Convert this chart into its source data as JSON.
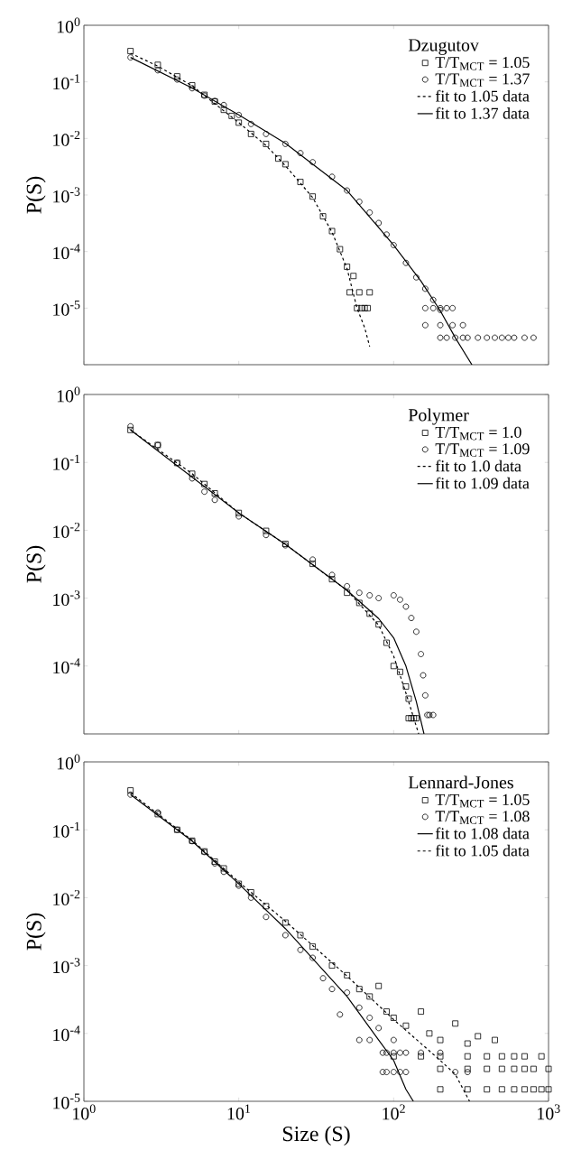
{
  "chart_data": [
    {
      "type": "scatter",
      "legend_title": "Dzugutov",
      "ylabel": "P(S)",
      "log": "xy",
      "legend": "top right",
      "tick_labels": "y",
      "xlim": [
        1,
        1000
      ],
      "ylim": [
        1e-06,
        1
      ],
      "xticks": [
        {
          "value": 1,
          "label": null
        },
        {
          "value": 10,
          "label": null
        },
        {
          "value": 100,
          "label": null
        },
        {
          "value": 1000,
          "label": null
        }
      ],
      "yticks": [
        {
          "value": 1e-06,
          "label": null
        },
        {
          "value": 1e-05,
          "label": "10$^{-5}$"
        },
        {
          "value": 0.0001,
          "label": "10$^{-4}$"
        },
        {
          "value": 0.001,
          "label": "10$^{-3}$"
        },
        {
          "value": 0.01,
          "label": "10$^{-2}$"
        },
        {
          "value": 0.1,
          "label": "10$^{-1}$"
        },
        {
          "value": 1,
          "label": "10$^{0}$"
        }
      ],
      "series": [
        {
          "name": "T/T$_{MCT}$ = 1.05",
          "marker": "square",
          "color": "#000000",
          "x": [
            2,
            3,
            4,
            5,
            6,
            7,
            8,
            9,
            10,
            12,
            15,
            18,
            20,
            25,
            30,
            35,
            40,
            45,
            50,
            52,
            55,
            58,
            60,
            62,
            65,
            68,
            70
          ],
          "values": [
            0.35,
            0.2,
            0.125,
            0.087,
            0.059,
            0.045,
            0.032,
            0.025,
            0.019,
            0.012,
            0.008,
            0.0044,
            0.0035,
            0.0017,
            0.00094,
            0.00042,
            0.00023,
            0.00011,
            5.4e-05,
            1.9e-05,
            3.7e-05,
            1e-05,
            1.9e-05,
            1e-05,
            1e-05,
            1e-05,
            1.9e-05
          ]
        },
        {
          "name": "T/T$_{MCT}$ = 1.37",
          "marker": "circle",
          "color": "#000000",
          "x": [
            2,
            3,
            4,
            5,
            6,
            7,
            8,
            10,
            12,
            15,
            20,
            25,
            30,
            40,
            50,
            60,
            70,
            80,
            90,
            100,
            120,
            140,
            160,
            180,
            200,
            160,
            180,
            200,
            220,
            240,
            160,
            200,
            240,
            280,
            200,
            220,
            250,
            280,
            300,
            350,
            400,
            450,
            500,
            550,
            600,
            700,
            800
          ],
          "values": [
            0.27,
            0.16,
            0.11,
            0.077,
            0.057,
            0.046,
            0.039,
            0.026,
            0.018,
            0.012,
            0.008,
            0.0055,
            0.0038,
            0.0021,
            0.0012,
            0.00076,
            0.00049,
            0.00032,
            0.0002,
            0.00013,
            6.3e-05,
            3.5e-05,
            2.2e-05,
            1.4e-05,
            9.3e-06,
            1e-05,
            1e-05,
            1e-05,
            1e-05,
            1e-05,
            5e-06,
            5e-06,
            5e-06,
            5e-06,
            3e-06,
            3e-06,
            3e-06,
            3e-06,
            3e-06,
            3e-06,
            3e-06,
            3e-06,
            3e-06,
            3e-06,
            3e-06,
            3e-06,
            3e-06
          ]
        },
        {
          "name": "fit to 1.05 data",
          "type": "line",
          "line_style": "dashed",
          "marker": "none",
          "color": "#000000",
          "x": [
            2,
            3,
            5,
            10,
            15,
            20,
            30,
            40,
            50,
            58,
            65,
            70
          ],
          "values": [
            0.32,
            0.19,
            0.085,
            0.019,
            0.0075,
            0.0033,
            0.0009,
            0.00022,
            5e-05,
            1e-05,
            4.5e-06,
            2.1e-06
          ]
        },
        {
          "name": "fit to 1.37 data",
          "type": "line",
          "line_style": "solid",
          "marker": "none",
          "color": "#000000",
          "x": [
            2,
            5,
            10,
            20,
            50,
            100,
            150,
            200,
            250,
            320
          ],
          "values": [
            0.27,
            0.078,
            0.026,
            0.0082,
            0.0012,
            0.00013,
            3e-05,
            9e-06,
            3e-06,
            1e-06
          ]
        }
      ]
    },
    {
      "type": "scatter",
      "legend_title": "Polymer",
      "ylabel": "P(S)",
      "log": "xy",
      "legend": "top right",
      "tick_labels": "y",
      "xlim": [
        1,
        1000
      ],
      "ylim": [
        1e-05,
        1
      ],
      "xticks": [
        {
          "value": 1,
          "label": null
        },
        {
          "value": 10,
          "label": null
        },
        {
          "value": 100,
          "label": null
        },
        {
          "value": 1000,
          "label": null
        }
      ],
      "yticks": [
        {
          "value": 1e-05,
          "label": null
        },
        {
          "value": 0.0001,
          "label": "10$^{-4}$"
        },
        {
          "value": 0.001,
          "label": "10$^{-3}$"
        },
        {
          "value": 0.01,
          "label": "10$^{-2}$"
        },
        {
          "value": 0.1,
          "label": "10$^{-1}$"
        },
        {
          "value": 1,
          "label": "10$^{0}$"
        }
      ],
      "series": [
        {
          "name": "T/T$_{MCT}$ = 1.0",
          "marker": "square",
          "color": "#000000",
          "x": [
            2,
            3,
            4,
            5,
            6,
            7,
            10,
            15,
            20,
            30,
            40,
            50,
            60,
            70,
            80,
            90,
            100,
            110,
            120,
            125,
            125,
            130,
            135,
            140
          ],
          "values": [
            0.3,
            0.18,
            0.098,
            0.068,
            0.048,
            0.035,
            0.018,
            0.0098,
            0.0063,
            0.0032,
            0.0019,
            0.0012,
            0.00085,
            0.00059,
            0.00041,
            0.00022,
            0.0001,
            8.2e-05,
            5e-05,
            3.3e-05,
            1.7e-05,
            1.7e-05,
            1.7e-05,
            1.7e-05
          ]
        },
        {
          "name": "T/T$_{MCT}$ = 1.09",
          "marker": "circle",
          "color": "#000000",
          "x": [
            2,
            3,
            4,
            5,
            6,
            7,
            10,
            15,
            20,
            30,
            40,
            50,
            60,
            70,
            80,
            100,
            110,
            120,
            130,
            140,
            150,
            155,
            160,
            165,
            170,
            180
          ],
          "values": [
            0.34,
            0.18,
            0.098,
            0.058,
            0.037,
            0.028,
            0.016,
            0.0085,
            0.006,
            0.0037,
            0.0022,
            0.0015,
            0.0012,
            0.0011,
            0.001,
            0.0011,
            0.00095,
            0.00075,
            0.00051,
            0.00032,
            0.00015,
            7.3e-05,
            3.7e-05,
            1.9e-05,
            1.9e-05,
            1.9e-05
          ]
        },
        {
          "name": "fit to 1.0 data",
          "type": "line",
          "line_style": "dashed",
          "marker": "none",
          "color": "#000000",
          "x": [
            2,
            5,
            10,
            20,
            50,
            80,
            100,
            120,
            145
          ],
          "values": [
            0.3,
            0.068,
            0.018,
            0.0062,
            0.0013,
            0.0004,
            0.00014,
            4e-05,
            1e-05
          ]
        },
        {
          "name": "fit to 1.09 data",
          "type": "line",
          "line_style": "solid",
          "marker": "none",
          "color": "#000000",
          "x": [
            2,
            10,
            20,
            50,
            80,
            100,
            120,
            140,
            157
          ],
          "values": [
            0.3,
            0.018,
            0.0062,
            0.0013,
            0.0005,
            0.00026,
            0.0001,
            3e-05,
            1e-05
          ]
        }
      ]
    },
    {
      "type": "scatter",
      "legend_title": "Lennard-Jones",
      "ylabel": "P(S)",
      "xlabel": "Size (S)",
      "log": "xy",
      "legend": "top right",
      "xlim": [
        1,
        1000
      ],
      "ylim": [
        1e-05,
        1
      ],
      "xticks": [
        {
          "value": 1,
          "label": "10$^{0}$"
        },
        {
          "value": 10,
          "label": "10$^{1}$"
        },
        {
          "value": 100,
          "label": "10$^{2}$"
        },
        {
          "value": 1000,
          "label": "10$^{3}$"
        }
      ],
      "yticks": [
        {
          "value": 1e-05,
          "label": "10$^{-5}$"
        },
        {
          "value": 0.0001,
          "label": "10$^{-4}$"
        },
        {
          "value": 0.001,
          "label": "10$^{-3}$"
        },
        {
          "value": 0.01,
          "label": "10$^{-2}$"
        },
        {
          "value": 0.1,
          "label": "10$^{-1}$"
        },
        {
          "value": 1,
          "label": "10$^{0}$"
        }
      ],
      "series": [
        {
          "name": "T/T$_{MCT}$ = 1.05",
          "marker": "square",
          "color": "#000000",
          "x": [
            2,
            3,
            4,
            5,
            6,
            7,
            8,
            10,
            12,
            15,
            20,
            25,
            30,
            40,
            50,
            60,
            70,
            80,
            90,
            100,
            120,
            150,
            170,
            200,
            250,
            300,
            350,
            450,
            100,
            150,
            200,
            300,
            400,
            500,
            600,
            700,
            900,
            200,
            300,
            400,
            500,
            600,
            700,
            800,
            1000,
            200,
            300,
            400,
            500,
            600,
            700,
            800,
            900,
            1000
          ],
          "values": [
            0.38,
            0.17,
            0.1,
            0.069,
            0.048,
            0.034,
            0.027,
            0.016,
            0.012,
            0.0075,
            0.0043,
            0.0028,
            0.0019,
            0.001,
            0.00072,
            0.00045,
            0.00035,
            0.0005,
            0.00021,
            0.00017,
            0.00013,
            0.00021,
            0.0001,
            8e-05,
            0.00014,
            7.1e-05,
            9.1e-05,
            8e-05,
            4.6e-05,
            4.6e-05,
            4.6e-05,
            4.6e-05,
            4.6e-05,
            4.6e-05,
            4.6e-05,
            4.6e-05,
            4.6e-05,
            3e-05,
            3e-05,
            3e-05,
            3e-05,
            3e-05,
            3e-05,
            3e-05,
            3e-05,
            1.5e-05,
            1.5e-05,
            1.5e-05,
            1.5e-05,
            1.5e-05,
            1.5e-05,
            1.5e-05,
            1.5e-05,
            1.5e-05
          ]
        },
        {
          "name": "T/T$_{MCT}$ = 1.08",
          "marker": "circle",
          "color": "#000000",
          "x": [
            2,
            3,
            4,
            5,
            6,
            7,
            8,
            10,
            12,
            15,
            20,
            25,
            30,
            35,
            40,
            45,
            50,
            60,
            70,
            80,
            100,
            60,
            70,
            85,
            90,
            100,
            110,
            120,
            150,
            200,
            85,
            90,
            100,
            110,
            120,
            250,
            300
          ],
          "values": [
            0.33,
            0.18,
            0.1,
            0.068,
            0.047,
            0.032,
            0.024,
            0.015,
            0.01,
            0.0052,
            0.0028,
            0.0017,
            0.0013,
            0.00065,
            0.00045,
            0.00019,
            0.0004,
            0.00024,
            0.00017,
            0.00012,
            8e-05,
            8e-05,
            8e-05,
            5.2e-05,
            5.2e-05,
            5.2e-05,
            5.2e-05,
            5.2e-05,
            5.2e-05,
            5.2e-05,
            2.7e-05,
            2.7e-05,
            2.7e-05,
            2.7e-05,
            2.7e-05,
            2.7e-05,
            2.7e-05
          ]
        },
        {
          "name": "fit to 1.08 data",
          "type": "line",
          "line_style": "solid",
          "marker": "none",
          "color": "#000000",
          "x": [
            2,
            5,
            10,
            20,
            50,
            80,
            100,
            120,
            134
          ],
          "values": [
            0.33,
            0.068,
            0.016,
            0.0035,
            0.00035,
            8e-05,
            4e-05,
            1.5e-05,
            1e-05
          ]
        },
        {
          "name": "fit to 1.05 data",
          "type": "line",
          "line_style": "dashed",
          "marker": "none",
          "color": "#000000",
          "x": [
            2,
            5,
            10,
            20,
            50,
            100,
            200,
            250,
            309
          ],
          "values": [
            0.35,
            0.07,
            0.017,
            0.0045,
            0.0007,
            0.00016,
            4e-05,
            2.5e-05,
            1e-05
          ]
        }
      ]
    }
  ]
}
